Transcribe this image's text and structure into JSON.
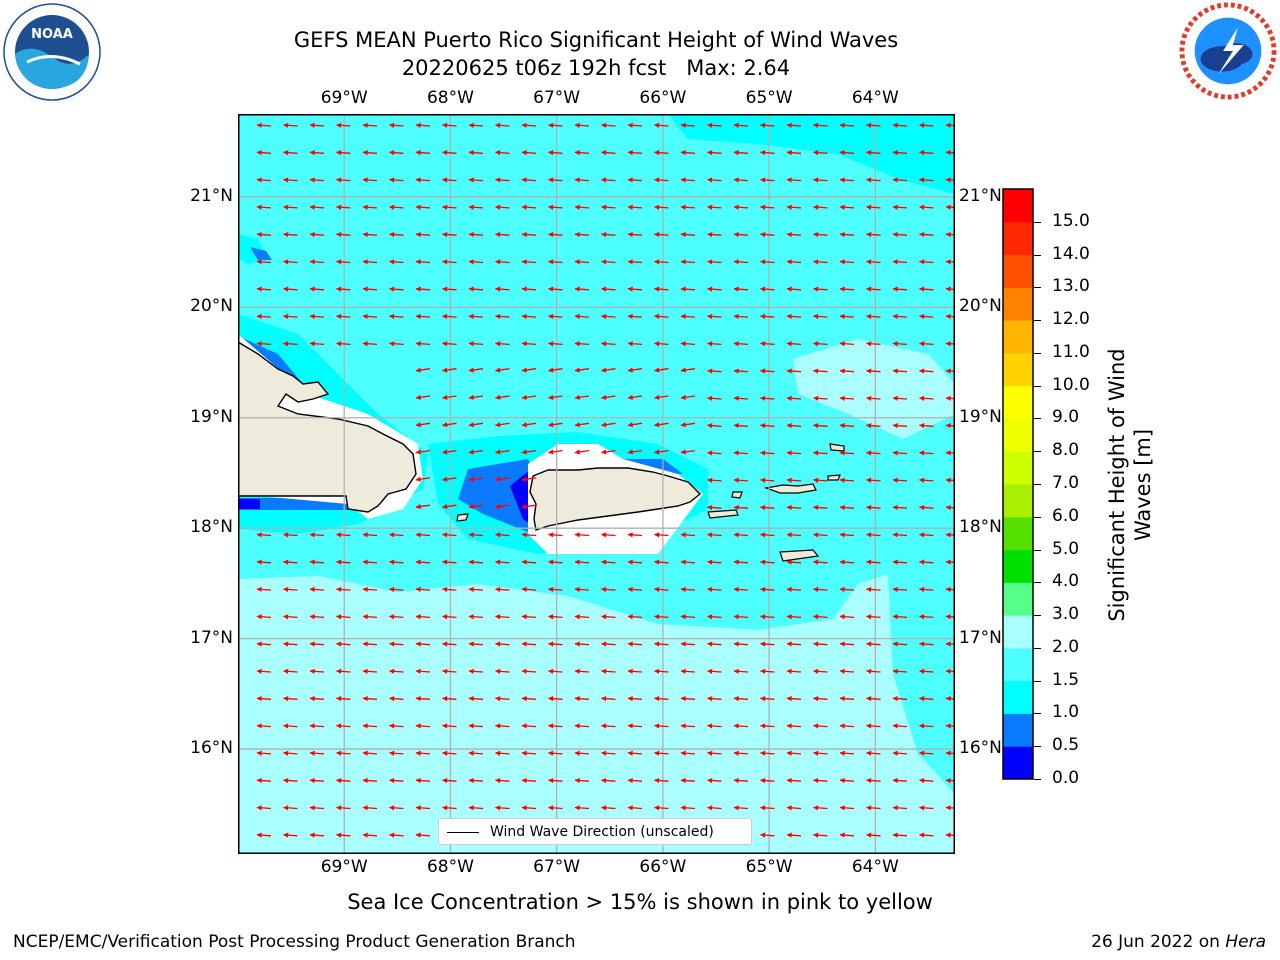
{
  "title": {
    "line1": "GEFS MEAN Puerto Rico Significant Height of Wind Waves",
    "line2": "20220625 t06z 192h fcst   Max: 2.64"
  },
  "logos": {
    "noaa": {
      "text": "NOAA",
      "ring_text": "NATIONAL OCEANIC AND ATMOSPHERIC ADMINISTRATION · U.S. DEPARTMENT OF COMMERCE"
    },
    "nws": {
      "ring_text": "NATIONAL WEATHER SERVICE"
    }
  },
  "map": {
    "lon_labels": [
      "69°W",
      "68°W",
      "67°W",
      "66°W",
      "65°W",
      "64°W"
    ],
    "lat_labels": [
      "21°N",
      "20°N",
      "19°N",
      "18°N",
      "17°N",
      "16°N"
    ],
    "lon_values": [
      -69,
      -68,
      -67,
      -66,
      -65,
      -64
    ],
    "lat_values": [
      21,
      20,
      19,
      18,
      17,
      16
    ],
    "extent": {
      "lon": [
        -70,
        -63.25
      ],
      "lat": [
        15.05,
        21.75
      ]
    },
    "arrow_color": "#ff0000",
    "land_color": "#efebdc",
    "grid_color": "#b0b0b0"
  },
  "colorbar": {
    "label": "Significant Height of Wind Waves [m]",
    "ticks": [
      "0.0",
      "0.5",
      "1.0",
      "1.5",
      "2.0",
      "3.0",
      "4.0",
      "5.0",
      "6.0",
      "7.0",
      "8.0",
      "9.0",
      "10.0",
      "11.0",
      "12.0",
      "13.0",
      "14.0",
      "15.0"
    ],
    "colors": [
      "#0000ff",
      "#0a7bff",
      "#00ffff",
      "#4dffff",
      "#aaffff",
      "#55ff88",
      "#00e000",
      "#55e000",
      "#aaee00",
      "#ccff00",
      "#eeff00",
      "#ffff00",
      "#ffd200",
      "#ffb400",
      "#ff8200",
      "#ff5000",
      "#ff2800",
      "#ff0000"
    ]
  },
  "legend": {
    "label": "Wind Wave Direction (unscaled)"
  },
  "subtitle": "Sea Ice Concentration > 15% is shown in pink to yellow",
  "footer": {
    "left": "NCEP/EMC/Verification Post Processing Product Generation Branch",
    "right_date": "26 Jun 2022 on",
    "right_host": "Hera"
  }
}
